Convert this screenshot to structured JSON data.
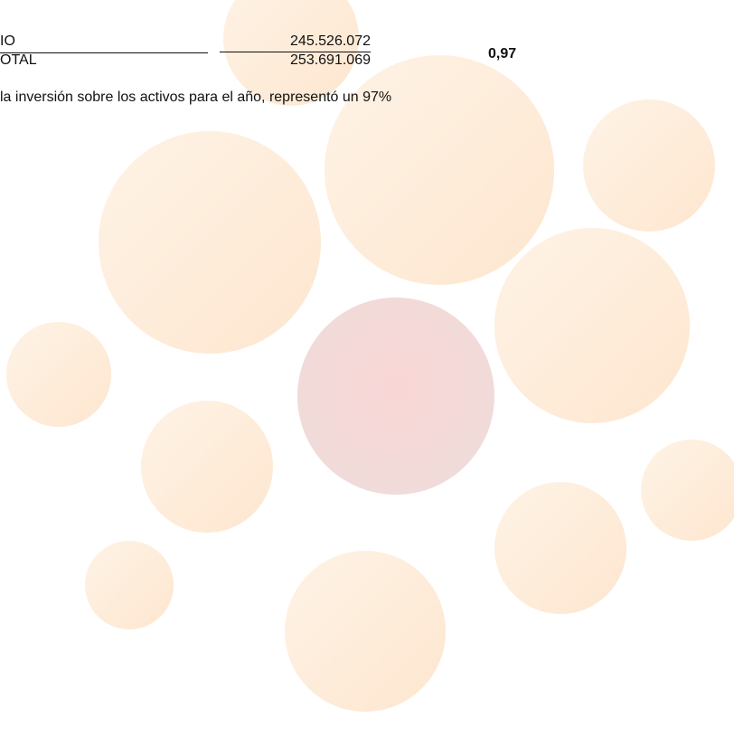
{
  "table": {
    "rows": [
      [
        "IO",
        "245.526.072"
      ],
      [
        "OTAL",
        "253.691.069"
      ]
    ],
    "result": "0,97"
  },
  "note": "la inversión sobre los activos para el año, representó un 97%"
}
